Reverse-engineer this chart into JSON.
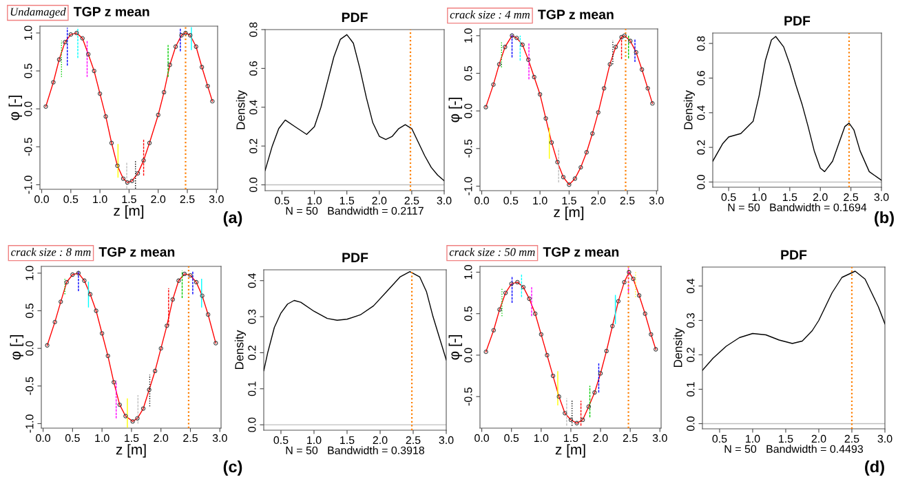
{
  "chart_data": [
    {
      "type": "line",
      "subtitle": "Undamaged",
      "title": "TGP z mean",
      "xlabel": "z [m]",
      "ylabel": "φ [-]",
      "xlim": [
        -0.03,
        3.02
      ],
      "ylim": [
        -1.06,
        1.09
      ],
      "xticks": [
        {
          "value": 0,
          "label": "0.0"
        },
        0.5,
        {
          "value": 1,
          "label": "1.0"
        },
        1.5,
        {
          "value": 2,
          "label": "2.0"
        },
        2.5,
        {
          "value": 3,
          "label": "3.0"
        }
      ],
      "yticks": [
        {
          "value": -1,
          "label": "-1.0"
        },
        -0.5,
        {
          "value": 0,
          "label": "0.0"
        },
        0.5,
        {
          "value": 1,
          "label": "1.0"
        }
      ],
      "annotations": [
        "(a)"
      ],
      "x": [
        0.07,
        0.2,
        0.3,
        0.4,
        0.5,
        0.6,
        0.7,
        0.8,
        0.9,
        1.0,
        1.1,
        1.2,
        1.3,
        1.4,
        1.47,
        1.55,
        1.65,
        1.75,
        1.85,
        2.0,
        2.1,
        2.2,
        2.3,
        2.4,
        2.47,
        2.55,
        2.65,
        2.75,
        2.85,
        2.93
      ],
      "series": [
        {
          "type": "scatter",
          "marker": "circle",
          "color": "#404040",
          "values": [
            0.03,
            0.35,
            0.65,
            0.88,
            0.98,
            1.0,
            0.93,
            0.72,
            0.5,
            0.2,
            -0.1,
            -0.45,
            -0.75,
            -0.92,
            -0.97,
            -0.95,
            -0.85,
            -0.68,
            -0.45,
            -0.08,
            0.22,
            0.58,
            0.82,
            0.97,
            1.0,
            0.97,
            0.82,
            0.55,
            0.3,
            0.1
          ]
        },
        {
          "type": "line",
          "color": "#ff0000",
          "values": [
            0.03,
            0.35,
            0.65,
            0.88,
            0.98,
            1.0,
            0.93,
            0.72,
            0.5,
            0.2,
            -0.1,
            -0.45,
            -0.75,
            -0.92,
            -0.97,
            -0.95,
            -0.85,
            -0.68,
            -0.45,
            -0.08,
            0.22,
            0.58,
            0.82,
            0.97,
            1.0,
            0.97,
            0.82,
            0.55,
            0.3,
            0.1
          ]
        },
        {
          "type": "line",
          "color": "#00cd00",
          "line_style": "dotted",
          "x": [
            0.34,
            0.34
          ],
          "values": [
            0.42,
            0.9
          ]
        },
        {
          "type": "line",
          "color": "#0000ff",
          "line_style": "dashed",
          "x": [
            0.44,
            0.44
          ],
          "values": [
            0.57,
            1.07
          ]
        },
        {
          "type": "line",
          "color": "#00ffff",
          "line_style": "dashed",
          "x": [
            0.62,
            0.62
          ],
          "values": [
            0.67,
            1.07
          ]
        },
        {
          "type": "line",
          "color": "#ff00ff",
          "line_style": "dashed",
          "x": [
            0.78,
            0.78
          ],
          "values": [
            0.42,
            0.9
          ]
        },
        {
          "type": "line",
          "color": "#ffff00",
          "line_style": "solid",
          "x": [
            1.31,
            1.31
          ],
          "values": [
            -0.9,
            -0.47
          ]
        },
        {
          "type": "line",
          "color": "#bebebe",
          "line_style": "dashed",
          "x": [
            1.46,
            1.46
          ],
          "values": [
            -1.05,
            -0.7
          ]
        },
        {
          "type": "line",
          "color": "#000000",
          "line_style": "dotted",
          "x": [
            1.61,
            1.61
          ],
          "values": [
            -1.05,
            -0.69
          ]
        },
        {
          "type": "line",
          "color": "#ff0000",
          "line_style": "dashed",
          "x": [
            1.75,
            1.75
          ],
          "values": [
            -0.88,
            -0.4
          ]
        },
        {
          "type": "line",
          "color": "#00cd00",
          "line_style": "dashed",
          "x": [
            2.17,
            2.17
          ],
          "values": [
            0.42,
            0.84
          ]
        },
        {
          "type": "line",
          "color": "#0000ff",
          "line_style": "dashed",
          "x": [
            2.38,
            2.38
          ],
          "values": [
            0.76,
            1.07
          ]
        },
        {
          "type": "line",
          "color": "#00ffff",
          "line_style": "solid",
          "x": [
            2.57,
            2.57
          ],
          "values": [
            0.78,
            1.07
          ]
        }
      ],
      "ref_lines": [
        {
          "axis": "x",
          "value": 2.47,
          "color": "#ff7f00",
          "line_style": "dotted"
        }
      ]
    },
    {
      "type": "line",
      "title": "PDF",
      "xlabel": "N = 50   Bandwidth = 0.2117",
      "ylabel": "Density",
      "xlim": [
        0.24,
        3.0
      ],
      "ylim": [
        -0.03,
        0.8
      ],
      "xticks": [
        0.5,
        {
          "value": 1,
          "label": "1.0"
        },
        1.5,
        {
          "value": 2,
          "label": "2.0"
        },
        2.5,
        {
          "value": 3,
          "label": "3.0"
        }
      ],
      "yticks": [
        {
          "value": 0,
          "label": "0.0"
        },
        0.2,
        0.4,
        0.6,
        0.8
      ],
      "x": [
        0.24,
        0.35,
        0.45,
        0.55,
        0.7,
        0.88,
        1.0,
        1.1,
        1.2,
        1.3,
        1.4,
        1.5,
        1.6,
        1.7,
        1.8,
        1.9,
        2.0,
        2.1,
        2.2,
        2.3,
        2.4,
        2.5,
        2.6,
        2.7,
        2.8,
        2.9,
        3.0
      ],
      "series": [
        {
          "color": "#000000",
          "values": [
            0.074,
            0.2,
            0.29,
            0.334,
            0.3,
            0.26,
            0.3,
            0.4,
            0.53,
            0.66,
            0.75,
            0.774,
            0.73,
            0.6,
            0.45,
            0.32,
            0.25,
            0.234,
            0.25,
            0.29,
            0.31,
            0.29,
            0.22,
            0.15,
            0.09,
            0.05,
            0.021
          ]
        }
      ],
      "ref_lines": [
        {
          "axis": "y",
          "value": 0,
          "color": "#bebebe",
          "line_style": "solid"
        },
        {
          "axis": "x",
          "value": 2.48,
          "color": "#ff7f00",
          "line_style": "dotted"
        }
      ]
    },
    {
      "type": "line",
      "subtitle": "crack size : 4 mm",
      "title": "TGP z mean",
      "xlabel": "z [m]",
      "ylabel": "φ [-]",
      "xlim": [
        -0.03,
        3.02
      ],
      "ylim": [
        -1.06,
        1.09
      ],
      "xticks": [
        {
          "value": 0,
          "label": "0.0"
        },
        0.5,
        {
          "value": 1,
          "label": "1.0"
        },
        1.5,
        {
          "value": 2,
          "label": "2.0"
        },
        2.5,
        {
          "value": 3,
          "label": "3.0"
        }
      ],
      "yticks": [
        {
          "value": -1,
          "label": "-1.0"
        },
        -0.5,
        {
          "value": 0,
          "label": "0.0"
        },
        0.5,
        {
          "value": 1,
          "label": "1.0"
        }
      ],
      "annotations": [
        "(b)"
      ],
      "x": [
        0.07,
        0.2,
        0.3,
        0.4,
        0.52,
        0.6,
        0.7,
        0.8,
        0.9,
        1.0,
        1.1,
        1.2,
        1.3,
        1.4,
        1.5,
        1.6,
        1.7,
        1.8,
        1.9,
        2.0,
        2.1,
        2.2,
        2.3,
        2.4,
        2.45,
        2.55,
        2.65,
        2.75,
        2.85,
        2.93
      ],
      "series": [
        {
          "type": "scatter",
          "marker": "circle",
          "color": "#404040",
          "values": [
            0.05,
            0.35,
            0.62,
            0.85,
            1.0,
            0.97,
            0.88,
            0.68,
            0.45,
            0.22,
            -0.1,
            -0.42,
            -0.68,
            -0.88,
            -0.98,
            -0.9,
            -0.75,
            -0.55,
            -0.3,
            -0.02,
            0.3,
            0.62,
            0.85,
            0.98,
            1.0,
            0.93,
            0.78,
            0.55,
            0.3,
            0.1
          ]
        },
        {
          "type": "line",
          "color": "#ff0000",
          "values": [
            0.05,
            0.35,
            0.62,
            0.85,
            1.0,
            0.97,
            0.88,
            0.68,
            0.45,
            0.22,
            -0.1,
            -0.42,
            -0.68,
            -0.88,
            -0.98,
            -0.9,
            -0.75,
            -0.55,
            -0.3,
            -0.02,
            0.3,
            0.62,
            0.85,
            0.98,
            1.0,
            0.93,
            0.78,
            0.55,
            0.3,
            0.1
          ]
        },
        {
          "type": "line",
          "color": "#00cd00",
          "line_style": "dotted",
          "x": [
            0.34,
            0.34
          ],
          "values": [
            0.58,
            0.93
          ]
        },
        {
          "type": "line",
          "color": "#0000ff",
          "line_style": "dashed",
          "x": [
            0.52,
            0.52
          ],
          "values": [
            0.71,
            1.03
          ]
        },
        {
          "type": "line",
          "color": "#00ffff",
          "line_style": "dashed",
          "x": [
            0.66,
            0.66
          ],
          "values": [
            0.67,
            1.0
          ]
        },
        {
          "type": "line",
          "color": "#ff00ff",
          "line_style": "dashed",
          "x": [
            0.81,
            0.81
          ],
          "values": [
            0.42,
            0.9
          ]
        },
        {
          "type": "line",
          "color": "#ffff00",
          "line_style": "solid",
          "x": [
            1.16,
            1.16
          ],
          "values": [
            -0.63,
            -0.23
          ]
        },
        {
          "type": "line",
          "color": "#bebebe",
          "line_style": "dashed",
          "x": [
            1.32,
            1.32
          ],
          "values": [
            -0.95,
            -0.5
          ]
        },
        {
          "type": "line",
          "color": "#000000",
          "line_style": "dotted",
          "x": [
            2.25,
            2.25
          ],
          "values": [
            0.62,
            0.94
          ]
        },
        {
          "type": "line",
          "color": "#ff0000",
          "line_style": "dashed",
          "x": [
            2.4,
            2.4
          ],
          "values": [
            0.69,
            1.0
          ]
        },
        {
          "type": "line",
          "color": "#00cd00",
          "line_style": "dashed",
          "x": [
            2.52,
            2.52
          ],
          "values": [
            0.7,
            1.0
          ]
        },
        {
          "type": "line",
          "color": "#0000ff",
          "line_style": "dashed",
          "x": [
            2.63,
            2.63
          ],
          "values": [
            0.65,
            0.95
          ]
        }
      ],
      "ref_lines": [
        {
          "axis": "x",
          "value": 2.47,
          "color": "#ff7f00",
          "line_style": "dotted"
        }
      ]
    },
    {
      "type": "line",
      "title": "PDF",
      "xlabel": "N = 50   Bandwidth = 0.1694",
      "ylabel": "Density",
      "xlim": [
        0.24,
        3.0
      ],
      "ylim": [
        -0.03,
        0.86
      ],
      "xticks": [
        0.5,
        {
          "value": 1,
          "label": "1.0"
        },
        1.5,
        {
          "value": 2,
          "label": "2.0"
        },
        2.5,
        {
          "value": 3,
          "label": "3.0"
        }
      ],
      "yticks": [
        {
          "value": 0,
          "label": "0.0"
        },
        0.2,
        0.4,
        0.6,
        0.8
      ],
      "x": [
        0.24,
        0.4,
        0.5,
        0.7,
        0.9,
        1.0,
        1.1,
        1.2,
        1.27,
        1.4,
        1.5,
        1.6,
        1.7,
        1.8,
        1.9,
        2.0,
        2.07,
        2.2,
        2.3,
        2.4,
        2.47,
        2.55,
        2.65,
        2.8,
        3.0
      ],
      "series": [
        {
          "color": "#000000",
          "values": [
            0.12,
            0.22,
            0.26,
            0.28,
            0.35,
            0.5,
            0.7,
            0.82,
            0.84,
            0.78,
            0.68,
            0.56,
            0.45,
            0.32,
            0.18,
            0.08,
            0.06,
            0.12,
            0.22,
            0.32,
            0.34,
            0.3,
            0.18,
            0.06,
            0.01
          ]
        }
      ],
      "ref_lines": [
        {
          "axis": "y",
          "value": 0,
          "color": "#bebebe",
          "line_style": "solid"
        },
        {
          "axis": "x",
          "value": 2.47,
          "color": "#ff7f00",
          "line_style": "dotted"
        }
      ]
    },
    {
      "type": "line",
      "subtitle": "crack size : 8 mm",
      "title": "TGP z mean",
      "xlabel": "z [m]",
      "ylabel": "φ [-]",
      "xlim": [
        -0.03,
        3.02
      ],
      "ylim": [
        -1.06,
        1.09
      ],
      "xticks": [
        {
          "value": 0,
          "label": "0.0"
        },
        0.5,
        {
          "value": 1,
          "label": "1.0"
        },
        1.5,
        {
          "value": 2,
          "label": "2.0"
        },
        2.5,
        {
          "value": 3,
          "label": "3.0"
        }
      ],
      "yticks": [
        {
          "value": -1,
          "label": "-1.0"
        },
        -0.5,
        {
          "value": 0,
          "label": "0.0"
        },
        0.5,
        {
          "value": 1,
          "label": "1.0"
        }
      ],
      "annotations": [
        "(c)"
      ],
      "x": [
        0.07,
        0.2,
        0.3,
        0.4,
        0.5,
        0.6,
        0.7,
        0.8,
        0.9,
        1.0,
        1.1,
        1.2,
        1.3,
        1.4,
        1.52,
        1.6,
        1.7,
        1.8,
        1.9,
        2.0,
        2.1,
        2.2,
        2.3,
        2.4,
        2.5,
        2.6,
        2.7,
        2.8,
        2.93
      ],
      "series": [
        {
          "type": "scatter",
          "marker": "circle",
          "color": "#404040",
          "values": [
            0.04,
            0.35,
            0.62,
            0.88,
            0.98,
            1.0,
            0.9,
            0.72,
            0.5,
            0.2,
            -0.1,
            -0.45,
            -0.75,
            -0.9,
            -0.97,
            -0.93,
            -0.8,
            -0.55,
            -0.3,
            0.0,
            0.3,
            0.65,
            0.9,
            0.99,
            0.97,
            0.88,
            0.7,
            0.45,
            0.07
          ]
        },
        {
          "type": "line",
          "color": "#ff0000",
          "values": [
            0.04,
            0.35,
            0.62,
            0.88,
            0.98,
            1.0,
            0.9,
            0.72,
            0.5,
            0.2,
            -0.1,
            -0.45,
            -0.75,
            -0.9,
            -0.97,
            -0.93,
            -0.8,
            -0.55,
            -0.3,
            0.0,
            0.3,
            0.65,
            0.9,
            0.99,
            0.97,
            0.88,
            0.7,
            0.45,
            0.07
          ]
        },
        {
          "type": "line",
          "color": "#00cd00",
          "line_style": "dotted",
          "x": [
            0.37,
            0.37
          ],
          "values": [
            0.72,
            0.93
          ]
        },
        {
          "type": "line",
          "color": "#0000ff",
          "line_style": "dashed",
          "x": [
            0.6,
            0.6
          ],
          "values": [
            0.76,
            1.03
          ]
        },
        {
          "type": "line",
          "color": "#00ffff",
          "line_style": "solid",
          "x": [
            0.77,
            0.77
          ],
          "values": [
            0.55,
            0.88
          ]
        },
        {
          "type": "line",
          "color": "#ff00ff",
          "line_style": "dashed",
          "x": [
            1.24,
            1.24
          ],
          "values": [
            -0.93,
            -0.43
          ]
        },
        {
          "type": "line",
          "color": "#ffff00",
          "line_style": "solid",
          "x": [
            1.43,
            1.43
          ],
          "values": [
            -1.05,
            -0.67
          ]
        },
        {
          "type": "line",
          "color": "#bebebe",
          "line_style": "dashed",
          "x": [
            1.61,
            1.61
          ],
          "values": [
            -1.0,
            -0.62
          ]
        },
        {
          "type": "line",
          "color": "#000000",
          "line_style": "dotted",
          "x": [
            1.81,
            1.81
          ],
          "values": [
            -0.77,
            -0.35
          ]
        },
        {
          "type": "line",
          "color": "#ff0000",
          "line_style": "dashed",
          "x": [
            2.13,
            2.13
          ],
          "values": [
            0.3,
            0.8
          ]
        },
        {
          "type": "line",
          "color": "#00cd00",
          "line_style": "dashed",
          "x": [
            2.36,
            2.36
          ],
          "values": [
            0.67,
            1.03
          ]
        },
        {
          "type": "line",
          "color": "#0000ff",
          "line_style": "dashed",
          "x": [
            2.54,
            2.54
          ],
          "values": [
            0.72,
            1.03
          ]
        },
        {
          "type": "line",
          "color": "#00ffff",
          "line_style": "solid",
          "x": [
            2.69,
            2.69
          ],
          "values": [
            0.55,
            0.92
          ]
        }
      ],
      "ref_lines": [
        {
          "axis": "x",
          "value": 2.47,
          "color": "#ff7f00",
          "line_style": "dotted"
        }
      ]
    },
    {
      "type": "line",
      "title": "PDF",
      "xlabel": "N = 50   Bandwidth = 0.3918",
      "ylabel": "Density",
      "xlim": [
        0.24,
        3.0
      ],
      "ylim": [
        -0.015,
        0.43
      ],
      "xticks": [
        0.5,
        {
          "value": 1,
          "label": "1.0"
        },
        1.5,
        {
          "value": 2,
          "label": "2.0"
        },
        2.5,
        {
          "value": 3,
          "label": "3.0"
        }
      ],
      "yticks": [
        {
          "value": 0,
          "label": "0.0"
        },
        0.1,
        0.2,
        0.3,
        0.4
      ],
      "x": [
        0.24,
        0.3,
        0.4,
        0.5,
        0.6,
        0.7,
        0.8,
        1.0,
        1.2,
        1.35,
        1.5,
        1.7,
        1.9,
        2.1,
        2.3,
        2.45,
        2.6,
        2.7,
        2.8,
        2.9,
        3.0
      ],
      "series": [
        {
          "color": "#000000",
          "values": [
            0.15,
            0.2,
            0.27,
            0.31,
            0.335,
            0.345,
            0.34,
            0.315,
            0.295,
            0.29,
            0.293,
            0.305,
            0.33,
            0.37,
            0.41,
            0.425,
            0.41,
            0.37,
            0.3,
            0.24,
            0.18
          ]
        }
      ],
      "ref_lines": [
        {
          "axis": "y",
          "value": 0,
          "color": "#bebebe",
          "line_style": "solid"
        },
        {
          "axis": "x",
          "value": 2.48,
          "color": "#ff7f00",
          "line_style": "dotted"
        }
      ]
    },
    {
      "type": "line",
      "subtitle": "crack size : 50 mm",
      "title": "TGP z mean",
      "xlabel": "z [m]",
      "ylabel": "φ [-]",
      "xlim": [
        -0.03,
        3.02
      ],
      "ylim": [
        -0.88,
        1.07
      ],
      "xticks": [
        {
          "value": 0,
          "label": "0.0"
        },
        0.5,
        {
          "value": 1,
          "label": "1.0"
        },
        1.5,
        {
          "value": 2,
          "label": "2.0"
        },
        2.5,
        {
          "value": 3,
          "label": "3.0"
        }
      ],
      "yticks": [
        -0.5,
        {
          "value": 0,
          "label": "0.0"
        },
        0.5,
        {
          "value": 1,
          "label": "1.0"
        }
      ],
      "annotations": [
        "(d)"
      ],
      "x": [
        0.07,
        0.2,
        0.3,
        0.4,
        0.5,
        0.6,
        0.7,
        0.8,
        0.9,
        1.0,
        1.1,
        1.2,
        1.3,
        1.4,
        1.5,
        1.6,
        1.7,
        1.8,
        1.9,
        2.0,
        2.1,
        2.2,
        2.3,
        2.4,
        2.48,
        2.55,
        2.65,
        2.75,
        2.85,
        2.93
      ],
      "series": [
        {
          "type": "scatter",
          "marker": "circle",
          "color": "#404040",
          "values": [
            0.04,
            0.3,
            0.55,
            0.75,
            0.86,
            0.88,
            0.82,
            0.68,
            0.5,
            0.25,
            0.0,
            -0.25,
            -0.5,
            -0.7,
            -0.78,
            -0.82,
            -0.78,
            -0.62,
            -0.45,
            -0.22,
            0.05,
            0.35,
            0.65,
            0.88,
            1.0,
            0.92,
            0.72,
            0.5,
            0.25,
            0.07
          ]
        },
        {
          "type": "line",
          "color": "#ff0000",
          "values": [
            0.04,
            0.3,
            0.55,
            0.75,
            0.86,
            0.88,
            0.82,
            0.68,
            0.5,
            0.25,
            0.0,
            -0.25,
            -0.5,
            -0.7,
            -0.78,
            -0.82,
            -0.78,
            -0.62,
            -0.45,
            -0.22,
            0.05,
            0.35,
            0.65,
            0.88,
            1.0,
            0.92,
            0.72,
            0.5,
            0.25,
            0.07
          ]
        },
        {
          "type": "line",
          "color": "#00cd00",
          "line_style": "dotted",
          "x": [
            0.34,
            0.34
          ],
          "values": [
            0.47,
            0.8
          ]
        },
        {
          "type": "line",
          "color": "#0000ff",
          "line_style": "dashed",
          "x": [
            0.51,
            0.51
          ],
          "values": [
            0.63,
            0.95
          ]
        },
        {
          "type": "line",
          "color": "#00ffff",
          "line_style": "dashed",
          "x": [
            0.67,
            0.67
          ],
          "values": [
            0.7,
            0.97
          ]
        },
        {
          "type": "line",
          "color": "#ff00ff",
          "line_style": "dashed",
          "x": [
            0.84,
            0.84
          ],
          "values": [
            0.47,
            0.82
          ]
        },
        {
          "type": "line",
          "color": "#ffff00",
          "line_style": "solid",
          "x": [
            1.28,
            1.28
          ],
          "values": [
            -0.6,
            -0.2
          ]
        },
        {
          "type": "line",
          "color": "#bebebe",
          "line_style": "dashed",
          "x": [
            1.43,
            1.43
          ],
          "values": [
            -0.85,
            -0.52
          ]
        },
        {
          "type": "line",
          "color": "#000000",
          "line_style": "dotted",
          "x": [
            1.52,
            1.52
          ],
          "values": [
            -0.85,
            -0.55
          ]
        },
        {
          "type": "line",
          "color": "#ff0000",
          "line_style": "dashed",
          "x": [
            1.67,
            1.67
          ],
          "values": [
            -0.85,
            -0.55
          ]
        },
        {
          "type": "line",
          "color": "#00cd00",
          "line_style": "dashed",
          "x": [
            1.82,
            1.82
          ],
          "values": [
            -0.75,
            -0.37
          ]
        },
        {
          "type": "line",
          "color": "#0000ff",
          "line_style": "dashed",
          "x": [
            1.97,
            1.97
          ],
          "values": [
            -0.45,
            -0.1
          ]
        },
        {
          "type": "line",
          "color": "#00ffff",
          "line_style": "solid",
          "x": [
            2.25,
            2.25
          ],
          "values": [
            0.38,
            0.72
          ]
        },
        {
          "type": "line",
          "color": "#ff00ff",
          "line_style": "dashed",
          "x": [
            2.47,
            2.47
          ],
          "values": [
            0.75,
            1.05
          ]
        },
        {
          "type": "line",
          "color": "#ffff00",
          "line_style": "dotted",
          "x": [
            2.59,
            2.59
          ],
          "values": [
            0.7,
            1.0
          ]
        }
      ],
      "ref_lines": [
        {
          "axis": "x",
          "value": 2.47,
          "color": "#ff7f00",
          "line_style": "dotted"
        }
      ]
    },
    {
      "type": "line",
      "title": "PDF",
      "xlabel": "N = 50   Bandwidth = 0.4493",
      "ylabel": "Density",
      "xlim": [
        0.24,
        3.0
      ],
      "ylim": [
        -0.015,
        0.455
      ],
      "xticks": [
        0.5,
        {
          "value": 1,
          "label": "1.0"
        },
        1.5,
        {
          "value": 2,
          "label": "2.0"
        },
        2.5,
        {
          "value": 3,
          "label": "3.0"
        }
      ],
      "yticks": [
        {
          "value": 0,
          "label": "0.0"
        },
        0.1,
        0.2,
        0.3,
        0.4
      ],
      "x": [
        0.24,
        0.4,
        0.6,
        0.8,
        1.0,
        1.2,
        1.4,
        1.6,
        1.75,
        1.9,
        2.0,
        2.1,
        2.2,
        2.35,
        2.55,
        2.7,
        2.8,
        2.9,
        3.0
      ],
      "series": [
        {
          "color": "#000000",
          "values": [
            0.155,
            0.19,
            0.225,
            0.25,
            0.262,
            0.258,
            0.243,
            0.233,
            0.24,
            0.27,
            0.3,
            0.34,
            0.38,
            0.425,
            0.443,
            0.42,
            0.38,
            0.34,
            0.29
          ]
        }
      ],
      "ref_lines": [
        {
          "axis": "y",
          "value": 0,
          "color": "#bebebe",
          "line_style": "solid"
        },
        {
          "axis": "x",
          "value": 2.5,
          "color": "#ff7f00",
          "line_style": "dotted"
        }
      ]
    }
  ]
}
